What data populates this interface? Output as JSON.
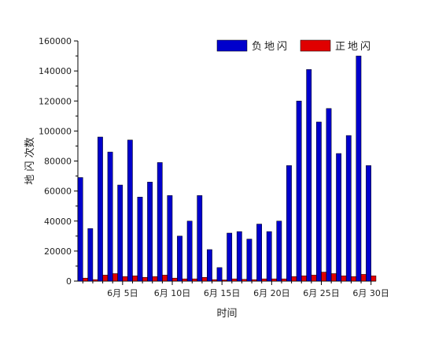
{
  "chart_data": {
    "type": "bar",
    "title": "",
    "xlabel": "时间",
    "ylabel": "地 闪 次数",
    "ylim": [
      0,
      160000
    ],
    "yticks": [
      0,
      20000,
      40000,
      60000,
      80000,
      100000,
      120000,
      140000,
      160000
    ],
    "legend_position": "top-right",
    "categories": [
      1,
      2,
      3,
      4,
      5,
      6,
      7,
      8,
      9,
      10,
      11,
      12,
      13,
      14,
      15,
      16,
      17,
      18,
      19,
      20,
      21,
      22,
      23,
      24,
      25,
      26,
      27,
      28,
      29,
      30
    ],
    "xtick_labels": [
      {
        "day": 5,
        "label": "6月 5日"
      },
      {
        "day": 10,
        "label": "6月 10日"
      },
      {
        "day": 15,
        "label": "6月 15日"
      },
      {
        "day": 20,
        "label": "6月 20日"
      },
      {
        "day": 25,
        "label": "6月 25日"
      },
      {
        "day": 30,
        "label": "6月 30日"
      }
    ],
    "series": [
      {
        "name": "负地闪",
        "color": "#0000cc",
        "values": [
          69000,
          35000,
          96000,
          86000,
          64000,
          94000,
          56000,
          66000,
          79000,
          57000,
          30000,
          40000,
          57000,
          21000,
          9000,
          32000,
          33000,
          28000,
          38000,
          33000,
          40000,
          77000,
          120000,
          141000,
          106000,
          115000,
          85000,
          97000,
          150000,
          77000
        ]
      },
      {
        "name": "正地闪",
        "color": "#e00000",
        "values": [
          2000,
          1000,
          4000,
          5000,
          3000,
          3500,
          2500,
          3000,
          4000,
          2000,
          1500,
          1500,
          2500,
          1000,
          800,
          1500,
          1200,
          1000,
          1500,
          1500,
          1500,
          3000,
          3500,
          4000,
          6000,
          5000,
          3500,
          3000,
          4500,
          3500
        ]
      }
    ]
  }
}
